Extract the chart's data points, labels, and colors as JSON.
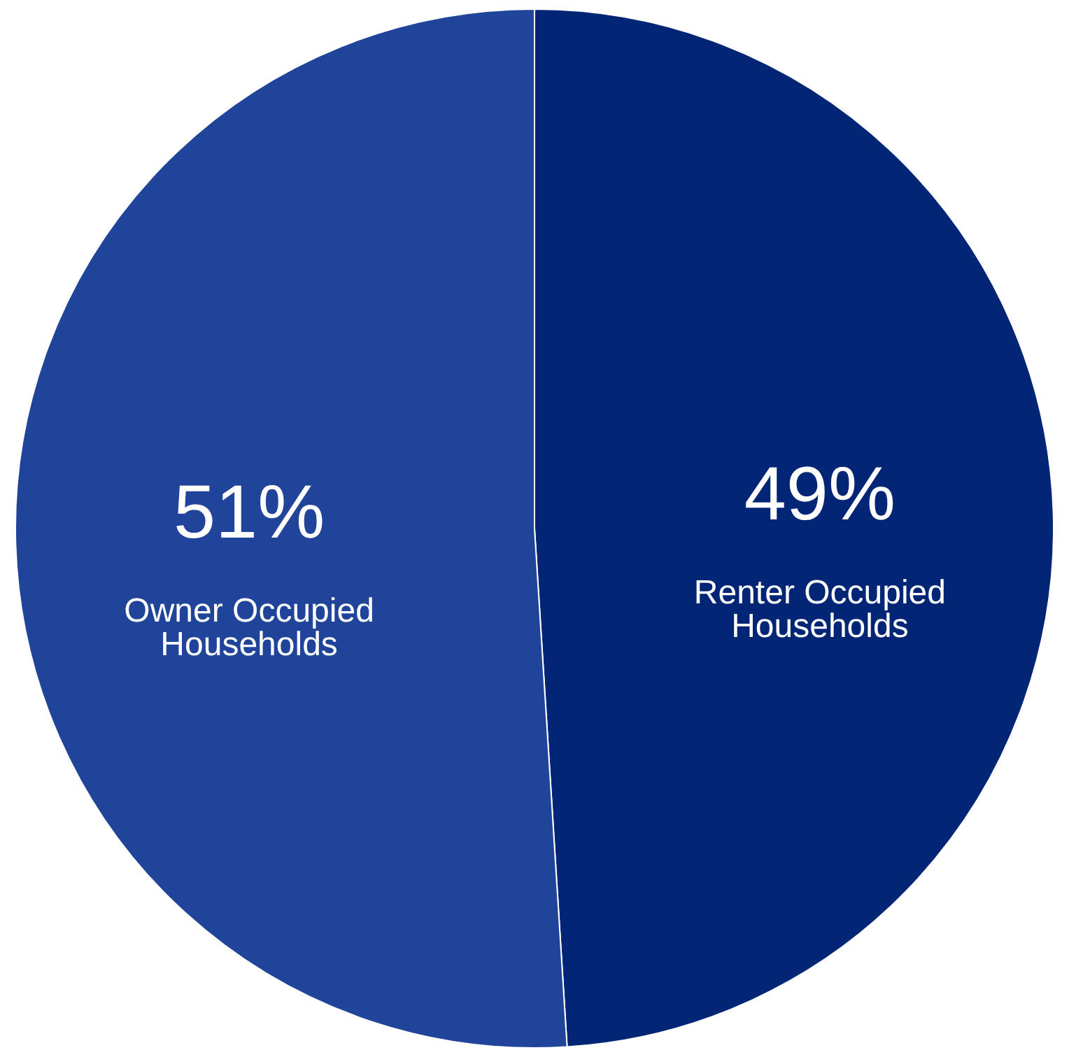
{
  "chart_data": {
    "type": "pie",
    "categories": [
      "Renter Occupied Households",
      "Owner Occupied Households"
    ],
    "values": [
      49,
      51
    ],
    "colors": [
      "#022576",
      "#1f4499"
    ],
    "value_labels": [
      "49%",
      "51%"
    ]
  }
}
